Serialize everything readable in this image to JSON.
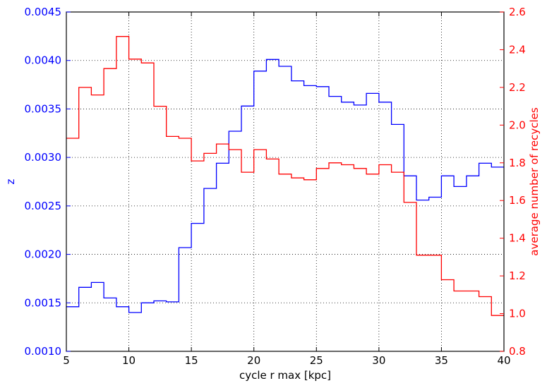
{
  "chart_data": {
    "type": "line",
    "step": "post",
    "xlabel": "cycle r max [kpc]",
    "ylabel": "z",
    "y2label": "average number of recycles",
    "xlim": [
      5,
      40
    ],
    "ylim": [
      0.001,
      0.0045
    ],
    "y2lim": [
      0.8,
      2.6
    ],
    "grid": true,
    "x_ticks": [
      "5",
      "10",
      "15",
      "20",
      "25",
      "30",
      "35",
      "40"
    ],
    "y_ticks": [
      "0.0010",
      "0.0015",
      "0.0020",
      "0.0025",
      "0.0030",
      "0.0035",
      "0.0040",
      "0.0045"
    ],
    "y2_ticks": [
      "0.8",
      "1.0",
      "1.2",
      "1.4",
      "1.6",
      "1.8",
      "2.0",
      "2.2",
      "2.4",
      "2.6"
    ],
    "colors": {
      "left_axis": "#0000ff",
      "right_axis": "#ff0000",
      "grid": "#000000",
      "frame": "#000000"
    },
    "bin_edges": [
      5,
      6,
      7,
      8,
      9,
      10,
      11,
      12,
      13,
      14,
      15,
      16,
      17,
      18,
      19,
      20,
      21,
      22,
      23,
      24,
      25,
      26,
      27,
      28,
      29,
      30,
      31,
      32,
      33,
      34,
      35,
      36,
      37,
      38,
      39,
      40
    ],
    "series": [
      {
        "axis": "left",
        "color": "#0000ff",
        "values": [
          0.00146,
          0.00166,
          0.00171,
          0.00155,
          0.00146,
          0.0014,
          0.0015,
          0.00152,
          0.00151,
          0.00207,
          0.00232,
          0.00268,
          0.00294,
          0.00327,
          0.00353,
          0.00389,
          0.00401,
          0.00394,
          0.00379,
          0.00374,
          0.00373,
          0.00363,
          0.00357,
          0.00354,
          0.00366,
          0.00357,
          0.00334,
          0.00281,
          0.00256,
          0.00259,
          0.00281,
          0.0027,
          0.00281,
          0.00294,
          0.0029
        ]
      },
      {
        "axis": "right",
        "color": "#ff0000",
        "values": [
          1.93,
          2.2,
          2.16,
          2.3,
          2.47,
          2.35,
          2.33,
          2.1,
          1.94,
          1.93,
          1.81,
          1.85,
          1.9,
          1.87,
          1.75,
          1.87,
          1.82,
          1.74,
          1.72,
          1.71,
          1.77,
          1.8,
          1.79,
          1.77,
          1.74,
          1.79,
          1.75,
          1.59,
          1.31,
          1.31,
          1.18,
          1.12,
          1.12,
          1.09,
          0.99
        ]
      }
    ]
  }
}
